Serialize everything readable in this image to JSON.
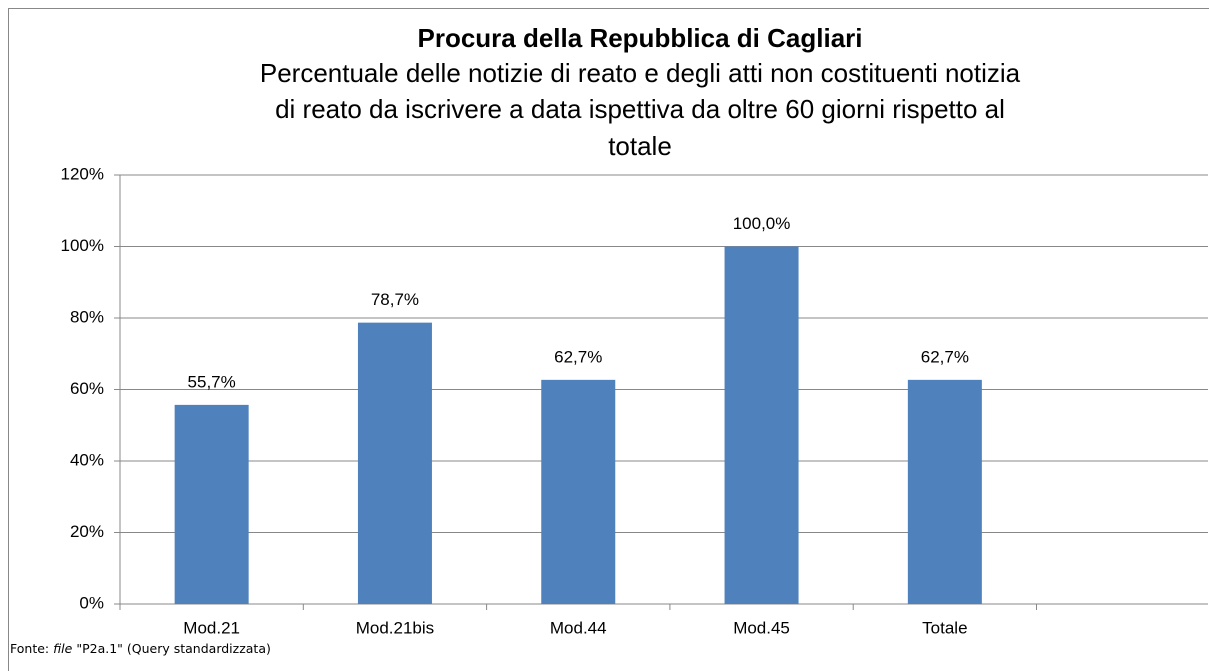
{
  "chart_data": {
    "type": "bar",
    "title": "Procura della Repubblica di Cagliari",
    "subtitle": [
      "Percentuale delle notizie di reato e degli atti non costituenti notizia",
      "di reato da iscrivere a data ispettiva da oltre 60 giorni rispetto al",
      "totale"
    ],
    "categories": [
      "Mod.21",
      "Mod.21bis",
      "Mod.44",
      "Mod.45",
      "Totale",
      null
    ],
    "values": [
      55.7,
      78.7,
      62.7,
      100,
      62.7,
      null
    ],
    "value_labels": [
      "55,7%",
      "78,7%",
      "62,7%",
      "100,0%",
      "62,7%",
      null
    ],
    "color": "#4f81bd",
    "ylim": [
      0,
      120
    ],
    "yticks": [
      {
        "value": 0,
        "label": "0%"
      },
      {
        "value": 20,
        "label": "20%"
      },
      {
        "value": 40,
        "label": "40%"
      },
      {
        "value": 60,
        "label": "60%"
      },
      {
        "value": 80,
        "label": "80%"
      },
      {
        "value": 100,
        "label": "100%"
      },
      {
        "value": 120,
        "label": "120%"
      }
    ],
    "grid": true,
    "source": {
      "prefix": "Fonte:",
      "italic": "file",
      "rest": "\"P2a.1\" (Query standardizzata)"
    }
  }
}
